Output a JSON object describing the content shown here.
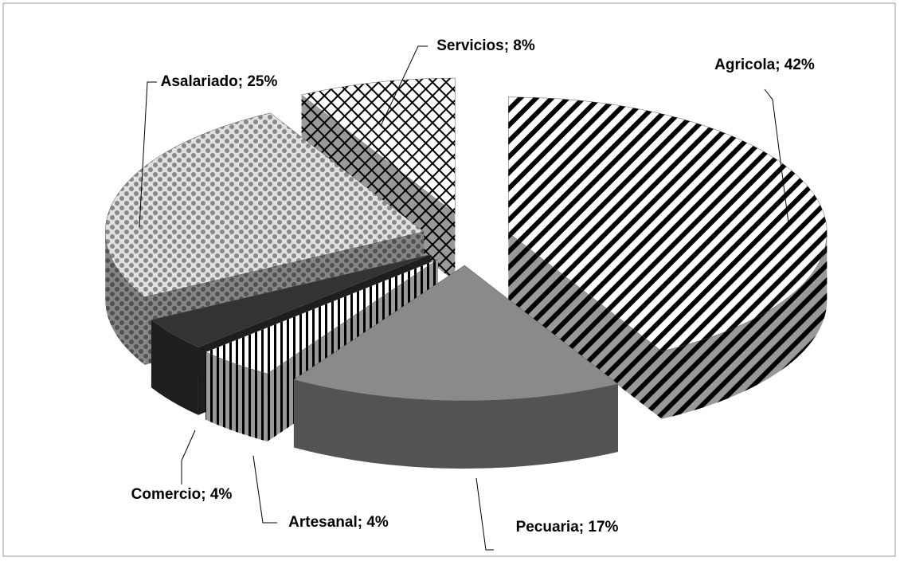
{
  "chart_data": {
    "type": "pie",
    "values": [
      42,
      17,
      4,
      4,
      25,
      8
    ],
    "value_labels": [
      "Agricola; 42%",
      "Pecuaria; 17%",
      "Artesanal; 4%",
      "Comercio; 4%",
      "Asalariado; 25%",
      "Servicios; 8%"
    ]
  }
}
